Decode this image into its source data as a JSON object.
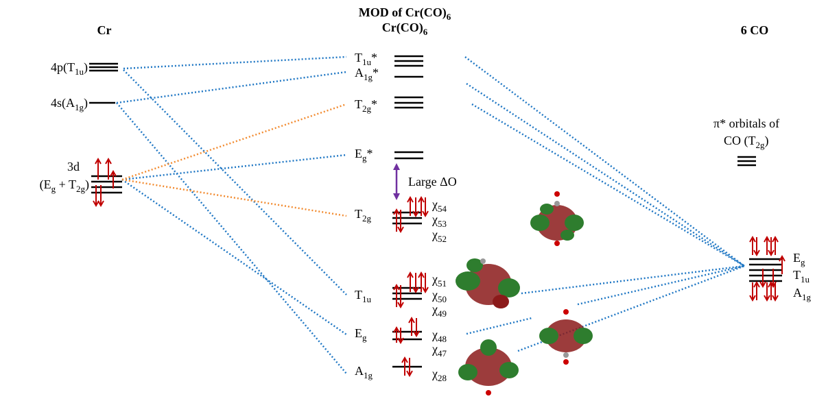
{
  "header": {
    "title": [
      "MOD of Cr(CO)",
      "6"
    ],
    "subtitle": [
      "Cr(CO)",
      "6"
    ]
  },
  "columns": {
    "metal": "Cr",
    "ligands": "6 CO"
  },
  "metal_orbitals": [
    [
      "4p(T",
      "1u",
      ")"
    ],
    [
      "4s(A",
      "1g",
      ")"
    ],
    [
      "3d"
    ],
    [
      "(E",
      "g",
      " + T",
      "2g",
      ")"
    ]
  ],
  "mo_levels": [
    [
      "T",
      "1u",
      "*"
    ],
    [
      "A",
      "1g",
      "*"
    ],
    [
      "T",
      "2g",
      "*"
    ],
    [
      "E",
      "g",
      "*"
    ],
    [
      "T",
      "2g"
    ],
    [
      "T",
      "1u"
    ],
    [
      "E",
      "g"
    ],
    [
      "A",
      "1g"
    ]
  ],
  "splitting_label": "Large ΔO",
  "mo_indices": [
    [
      "χ",
      "54"
    ],
    [
      "χ",
      "53"
    ],
    [
      "χ",
      "52"
    ],
    [
      "χ",
      "51"
    ],
    [
      "χ",
      "50"
    ],
    [
      "χ",
      "49"
    ],
    [
      "χ",
      "48"
    ],
    [
      "χ",
      "47"
    ],
    [
      "χ",
      "28"
    ]
  ],
  "ligand_pi_label": [
    [
      "π* orbitals of"
    ],
    [
      "CO (T",
      "2g",
      ")"
    ]
  ],
  "ligand_sigma": [
    [
      "E",
      "g"
    ],
    [
      "T",
      "1u"
    ],
    [
      "A",
      "1g"
    ]
  ]
}
